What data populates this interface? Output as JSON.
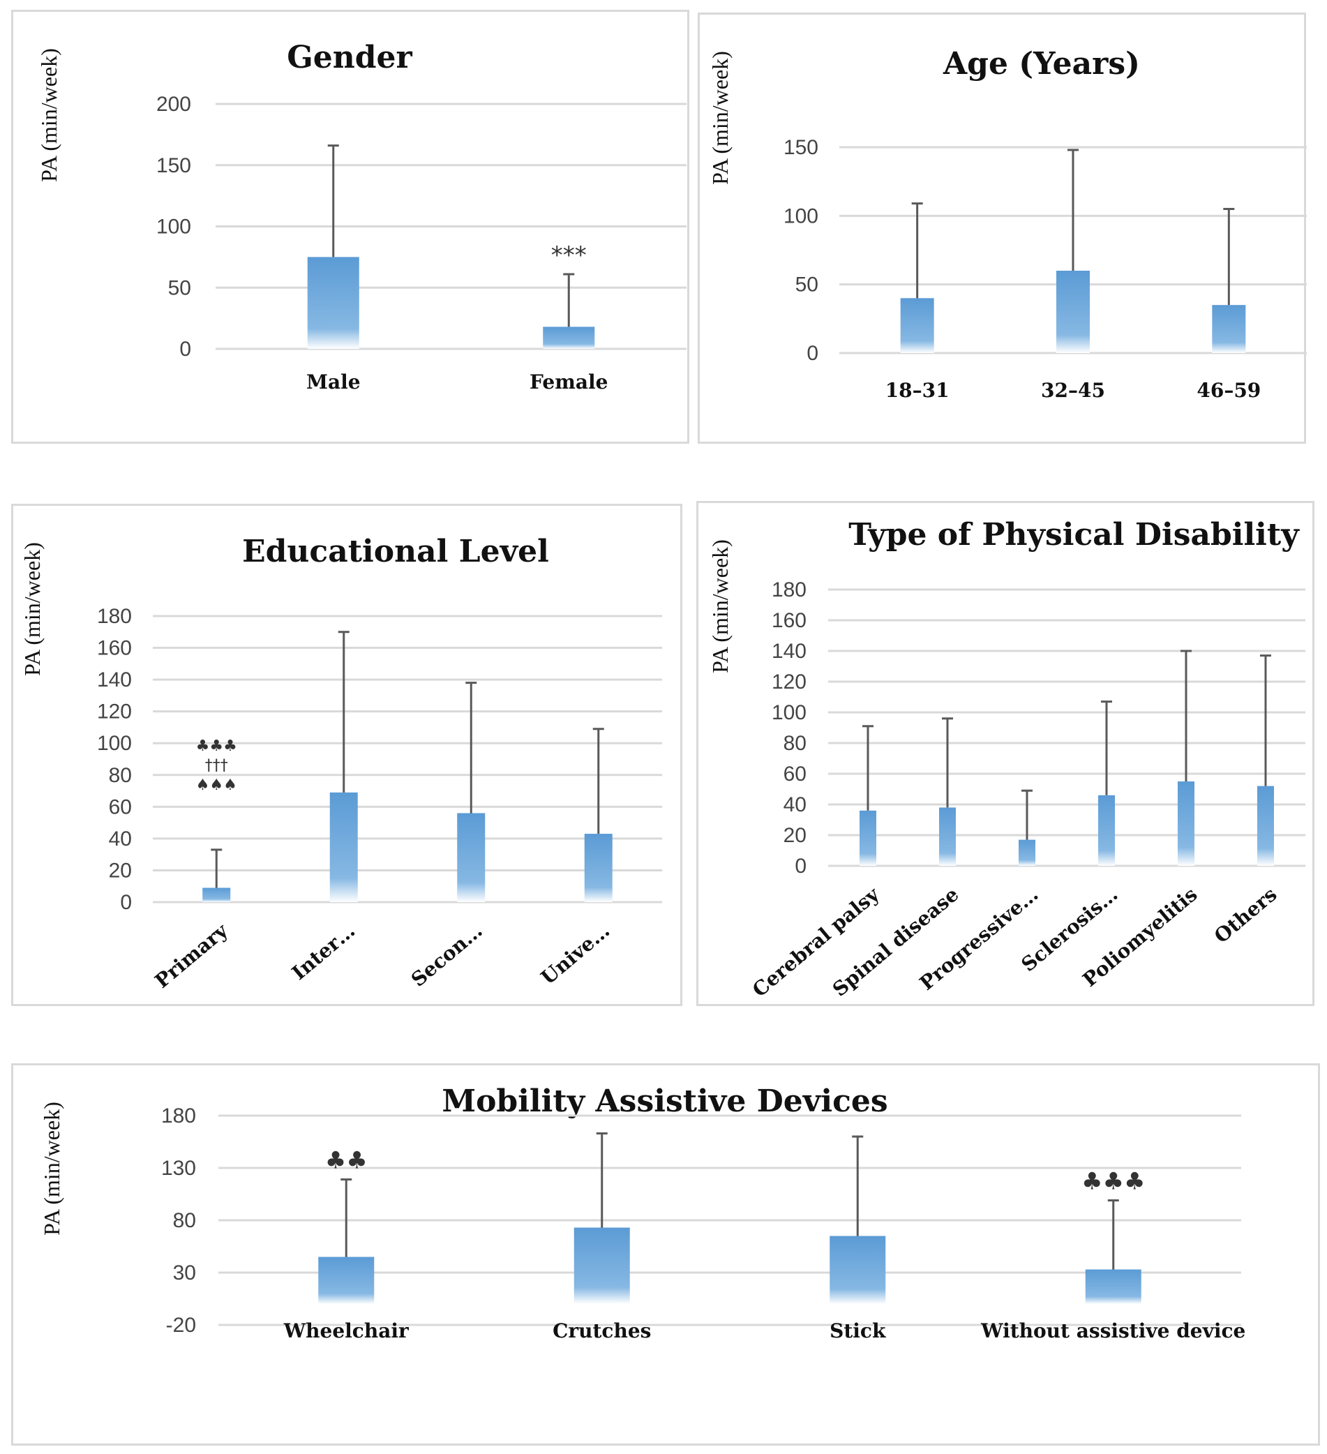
{
  "colors": {
    "bar_top": "#5b9bd5",
    "bar_bottom": "#ffffff",
    "grid": "#d9d9d9",
    "error": "#595959"
  },
  "chart_data": [
    {
      "id": "gender",
      "type": "bar",
      "title": "Gender",
      "ylabel": "PA (min/week)",
      "categories": [
        "Male",
        "Female"
      ],
      "values": [
        75,
        18
      ],
      "error_upper": [
        166,
        61
      ],
      "ylim": [
        0,
        200
      ],
      "ticks": [
        0,
        50,
        100,
        150,
        200
      ],
      "annotations": [
        {
          "index": 1,
          "lines": [
            "***"
          ]
        }
      ],
      "tick_rotation": 0
    },
    {
      "id": "age",
      "type": "bar",
      "title": "Age (Years)",
      "ylabel": "PA (min/week)",
      "categories": [
        "18–31",
        "32–45",
        "46–59"
      ],
      "values": [
        40,
        60,
        35
      ],
      "error_upper": [
        109,
        148,
        105
      ],
      "ylim": [
        0,
        150
      ],
      "ticks": [
        0,
        50,
        100,
        150
      ],
      "annotations": [],
      "tick_rotation": 0
    },
    {
      "id": "education",
      "type": "bar",
      "title": "Educational Level",
      "ylabel": "PA (min/week)",
      "categories": [
        "Primary",
        "Inter…",
        "Secon…",
        "Unive…"
      ],
      "values": [
        9,
        69,
        56,
        43
      ],
      "error_upper": [
        33,
        170,
        138,
        109
      ],
      "ylim": [
        0,
        180
      ],
      "ticks": [
        0,
        20,
        40,
        60,
        80,
        100,
        120,
        140,
        160,
        180
      ],
      "annotations": [
        {
          "index": 0,
          "lines": [
            "♣♣♣",
            "†††",
            "♠♠♠"
          ]
        }
      ],
      "tick_rotation": -40
    },
    {
      "id": "disability",
      "type": "bar",
      "title": "Type of Physical Disability",
      "ylabel": "PA (min/week)",
      "categories": [
        "Cerebral palsy",
        "Spinal disease",
        "Progressive…",
        "Sclerosis…",
        "Poliomyelitis",
        "Others"
      ],
      "values": [
        36,
        38,
        17,
        46,
        55,
        52
      ],
      "error_upper": [
        91,
        96,
        49,
        107,
        140,
        137
      ],
      "ylim": [
        0,
        180
      ],
      "ticks": [
        0,
        20,
        40,
        60,
        80,
        100,
        120,
        140,
        160,
        180
      ],
      "annotations": [],
      "tick_rotation": -40
    },
    {
      "id": "mobility",
      "type": "bar",
      "title": "Mobility Assistive Devices",
      "ylabel": "PA (min/week)",
      "categories": [
        "Wheelchair",
        "Crutches",
        "Stick",
        "Without assistive device"
      ],
      "values": [
        45,
        73,
        65,
        33
      ],
      "error_upper": [
        119,
        163,
        160,
        99
      ],
      "ylim": [
        -20,
        180
      ],
      "ticks": [
        -20,
        30,
        80,
        130,
        180
      ],
      "annotations": [
        {
          "index": 0,
          "lines": [
            "♣♣"
          ]
        },
        {
          "index": 3,
          "lines": [
            "♣♣♣"
          ]
        }
      ],
      "tick_rotation": 0
    }
  ]
}
